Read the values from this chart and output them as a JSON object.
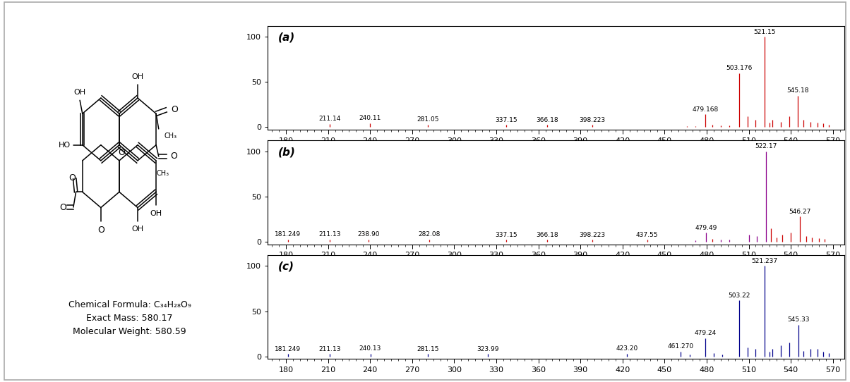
{
  "panel_a": {
    "label": "(a)",
    "peaks": [
      {
        "mz": 211.14,
        "intensity": 3.5,
        "label": "211.14",
        "color": "#cc0000"
      },
      {
        "mz": 240.11,
        "intensity": 4.5,
        "label": "240.11",
        "color": "#cc0000"
      },
      {
        "mz": 281.05,
        "intensity": 3.0,
        "label": "281.05",
        "color": "#cc0000"
      },
      {
        "mz": 337.15,
        "intensity": 2.5,
        "label": "337.15",
        "color": "#cc0000"
      },
      {
        "mz": 366.18,
        "intensity": 2.5,
        "label": "366.18",
        "color": "#cc0000"
      },
      {
        "mz": 398.223,
        "intensity": 2.5,
        "label": "398.223",
        "color": "#cc0000"
      },
      {
        "mz": 466.0,
        "intensity": 1.5,
        "label": "",
        "color": "#cc0000"
      },
      {
        "mz": 472.0,
        "intensity": 1.5,
        "label": "",
        "color": "#cc0000"
      },
      {
        "mz": 479.168,
        "intensity": 14,
        "label": "479.168",
        "color": "#cc0000"
      },
      {
        "mz": 484.0,
        "intensity": 3,
        "label": "",
        "color": "#cc0000"
      },
      {
        "mz": 490.0,
        "intensity": 2,
        "label": "",
        "color": "#cc0000"
      },
      {
        "mz": 496.0,
        "intensity": 2,
        "label": "",
        "color": "#cc0000"
      },
      {
        "mz": 503.176,
        "intensity": 60,
        "label": "503.176",
        "color": "#cc0000"
      },
      {
        "mz": 509.0,
        "intensity": 12,
        "label": "",
        "color": "#cc0000"
      },
      {
        "mz": 515.0,
        "intensity": 8,
        "label": "",
        "color": "#cc0000"
      },
      {
        "mz": 521.15,
        "intensity": 100,
        "label": "521.15",
        "color": "#cc0000"
      },
      {
        "mz": 525.0,
        "intensity": 5,
        "label": "",
        "color": "#cc0000"
      },
      {
        "mz": 527.0,
        "intensity": 8,
        "label": "",
        "color": "#cc0000"
      },
      {
        "mz": 533.0,
        "intensity": 6,
        "label": "",
        "color": "#cc0000"
      },
      {
        "mz": 539.0,
        "intensity": 12,
        "label": "",
        "color": "#cc0000"
      },
      {
        "mz": 545.18,
        "intensity": 35,
        "label": "545.18",
        "color": "#cc0000"
      },
      {
        "mz": 549.0,
        "intensity": 8,
        "label": "",
        "color": "#cc0000"
      },
      {
        "mz": 554.0,
        "intensity": 6,
        "label": "",
        "color": "#cc0000"
      },
      {
        "mz": 559.0,
        "intensity": 5,
        "label": "",
        "color": "#cc0000"
      },
      {
        "mz": 563.0,
        "intensity": 4,
        "label": "",
        "color": "#cc0000"
      },
      {
        "mz": 567.0,
        "intensity": 3,
        "label": "",
        "color": "#cc0000"
      }
    ]
  },
  "panel_b": {
    "label": "(b)",
    "peaks": [
      {
        "mz": 181.249,
        "intensity": 2.5,
        "label": "181.249",
        "color": "#cc0000"
      },
      {
        "mz": 211.13,
        "intensity": 2.5,
        "label": "211.13",
        "color": "#cc0000"
      },
      {
        "mz": 238.9,
        "intensity": 2.5,
        "label": "238.90",
        "color": "#cc0000"
      },
      {
        "mz": 282.08,
        "intensity": 2.5,
        "label": "282.08",
        "color": "#cc0000"
      },
      {
        "mz": 337.15,
        "intensity": 2.0,
        "label": "337.15",
        "color": "#cc0000"
      },
      {
        "mz": 366.18,
        "intensity": 2.0,
        "label": "366.18",
        "color": "#cc0000"
      },
      {
        "mz": 398.223,
        "intensity": 2.0,
        "label": "398.223",
        "color": "#cc0000"
      },
      {
        "mz": 437.55,
        "intensity": 2.0,
        "label": "437.55",
        "color": "#cc0000"
      },
      {
        "mz": 472.0,
        "intensity": 1.5,
        "label": "",
        "color": "#8b008b"
      },
      {
        "mz": 479.49,
        "intensity": 10,
        "label": "479.49",
        "color": "#8b008b"
      },
      {
        "mz": 484.0,
        "intensity": 3,
        "label": "",
        "color": "#cc0000"
      },
      {
        "mz": 490.0,
        "intensity": 2,
        "label": "",
        "color": "#8b008b"
      },
      {
        "mz": 496.0,
        "intensity": 2,
        "label": "",
        "color": "#8b008b"
      },
      {
        "mz": 510.0,
        "intensity": 8,
        "label": "",
        "color": "#8b008b"
      },
      {
        "mz": 516.0,
        "intensity": 6,
        "label": "",
        "color": "#8b008b"
      },
      {
        "mz": 522.17,
        "intensity": 100,
        "label": "522.17",
        "color": "#8b008b"
      },
      {
        "mz": 526.0,
        "intensity": 15,
        "label": "",
        "color": "#cc0000"
      },
      {
        "mz": 530.0,
        "intensity": 5,
        "label": "",
        "color": "#cc0000"
      },
      {
        "mz": 534.0,
        "intensity": 8,
        "label": "",
        "color": "#cc0000"
      },
      {
        "mz": 540.0,
        "intensity": 10,
        "label": "",
        "color": "#cc0000"
      },
      {
        "mz": 546.27,
        "intensity": 28,
        "label": "546.27",
        "color": "#cc0000"
      },
      {
        "mz": 551.0,
        "intensity": 6,
        "label": "",
        "color": "#cc0000"
      },
      {
        "mz": 555.0,
        "intensity": 5,
        "label": "",
        "color": "#cc0000"
      },
      {
        "mz": 560.0,
        "intensity": 4,
        "label": "",
        "color": "#cc0000"
      },
      {
        "mz": 564.0,
        "intensity": 3,
        "label": "",
        "color": "#cc0000"
      }
    ]
  },
  "panel_c": {
    "label": "(c)",
    "peaks": [
      {
        "mz": 181.249,
        "intensity": 2.5,
        "label": "181.249",
        "color": "#00008b"
      },
      {
        "mz": 211.13,
        "intensity": 2.5,
        "label": "211.13",
        "color": "#00008b"
      },
      {
        "mz": 240.13,
        "intensity": 3.0,
        "label": "240.13",
        "color": "#00008b"
      },
      {
        "mz": 281.15,
        "intensity": 2.5,
        "label": "281.15",
        "color": "#00008b"
      },
      {
        "mz": 323.99,
        "intensity": 2.5,
        "label": "323.99",
        "color": "#00008b"
      },
      {
        "mz": 423.2,
        "intensity": 3.0,
        "label": "423.20",
        "color": "#00008b"
      },
      {
        "mz": 461.27,
        "intensity": 5.5,
        "label": "461.270",
        "color": "#00008b"
      },
      {
        "mz": 468.0,
        "intensity": 2,
        "label": "",
        "color": "#00008b"
      },
      {
        "mz": 479.24,
        "intensity": 20,
        "label": "479.24",
        "color": "#00008b"
      },
      {
        "mz": 485.0,
        "intensity": 4,
        "label": "",
        "color": "#00008b"
      },
      {
        "mz": 491.0,
        "intensity": 2,
        "label": "",
        "color": "#00008b"
      },
      {
        "mz": 503.22,
        "intensity": 62,
        "label": "503.22",
        "color": "#00008b"
      },
      {
        "mz": 509.0,
        "intensity": 10,
        "label": "",
        "color": "#00008b"
      },
      {
        "mz": 515.0,
        "intensity": 8,
        "label": "",
        "color": "#00008b"
      },
      {
        "mz": 521.237,
        "intensity": 100,
        "label": "521.237",
        "color": "#00008b"
      },
      {
        "mz": 525.0,
        "intensity": 5,
        "label": "",
        "color": "#00008b"
      },
      {
        "mz": 527.0,
        "intensity": 8,
        "label": "",
        "color": "#00008b"
      },
      {
        "mz": 533.0,
        "intensity": 12,
        "label": "",
        "color": "#00008b"
      },
      {
        "mz": 539.0,
        "intensity": 15,
        "label": "",
        "color": "#00008b"
      },
      {
        "mz": 545.33,
        "intensity": 35,
        "label": "545.33",
        "color": "#00008b"
      },
      {
        "mz": 549.0,
        "intensity": 6,
        "label": "",
        "color": "#00008b"
      },
      {
        "mz": 554.0,
        "intensity": 8,
        "label": "",
        "color": "#00008b"
      },
      {
        "mz": 559.0,
        "intensity": 8,
        "label": "",
        "color": "#00008b"
      },
      {
        "mz": 563.0,
        "intensity": 5,
        "label": "",
        "color": "#00008b"
      },
      {
        "mz": 567.0,
        "intensity": 4,
        "label": "",
        "color": "#00008b"
      }
    ]
  },
  "xlim": [
    167,
    578
  ],
  "xticks": [
    180,
    210,
    240,
    270,
    300,
    330,
    360,
    390,
    420,
    450,
    480,
    510,
    540,
    570
  ],
  "ylim": [
    -3,
    112
  ],
  "yticks": [
    0,
    50,
    100
  ],
  "background_color": "#ffffff",
  "struct_text_line1": "Chemical Formula: C",
  "struct_text_sub": "34",
  "struct_text_line2": "H",
  "struct_text_sub2": "28",
  "struct_text_line3": "O",
  "struct_text_sub3": "9",
  "struct_line2": "Exact Mass: 580.17",
  "struct_line3": "Molecular Weight: 580.59"
}
